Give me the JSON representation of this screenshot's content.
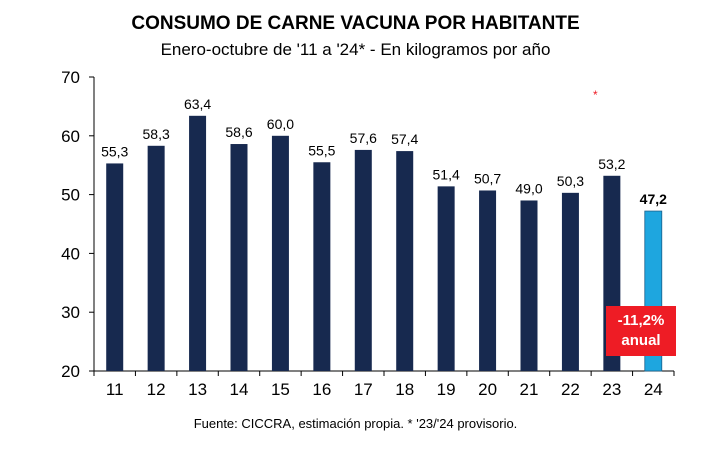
{
  "title": "CONSUMO DE CARNE VACUNA POR HABITANTE",
  "subtitle": "Enero-octubre de '11 a '24* - En kilogramos por año",
  "source": "Fuente: CICCRA, estimación propia. * '23/'24 provisorio.",
  "badge": {
    "line1": "-11,2%",
    "line2": "anual"
  },
  "asterisk": "*",
  "chart_data": {
    "type": "bar",
    "categories": [
      "11",
      "12",
      "13",
      "14",
      "15",
      "16",
      "17",
      "18",
      "19",
      "20",
      "21",
      "22",
      "23",
      "24"
    ],
    "values": [
      55.3,
      58.3,
      63.4,
      58.6,
      60.0,
      55.5,
      57.6,
      57.4,
      51.4,
      50.7,
      49.0,
      50.3,
      53.2,
      47.2
    ],
    "labels": [
      "55,3",
      "58,3",
      "63,4",
      "58,6",
      "60,0",
      "55,5",
      "57,6",
      "57,4",
      "51,4",
      "50,7",
      "49,0",
      "50,3",
      "53,2",
      "47,2"
    ],
    "highlight_index": 13,
    "ylim": [
      20,
      70
    ],
    "yticks": [
      20,
      30,
      40,
      50,
      60,
      70
    ],
    "grid": false,
    "colors": {
      "bar": "#17294f",
      "highlight": "#1ea6df",
      "badge": "#ee1c25"
    }
  }
}
